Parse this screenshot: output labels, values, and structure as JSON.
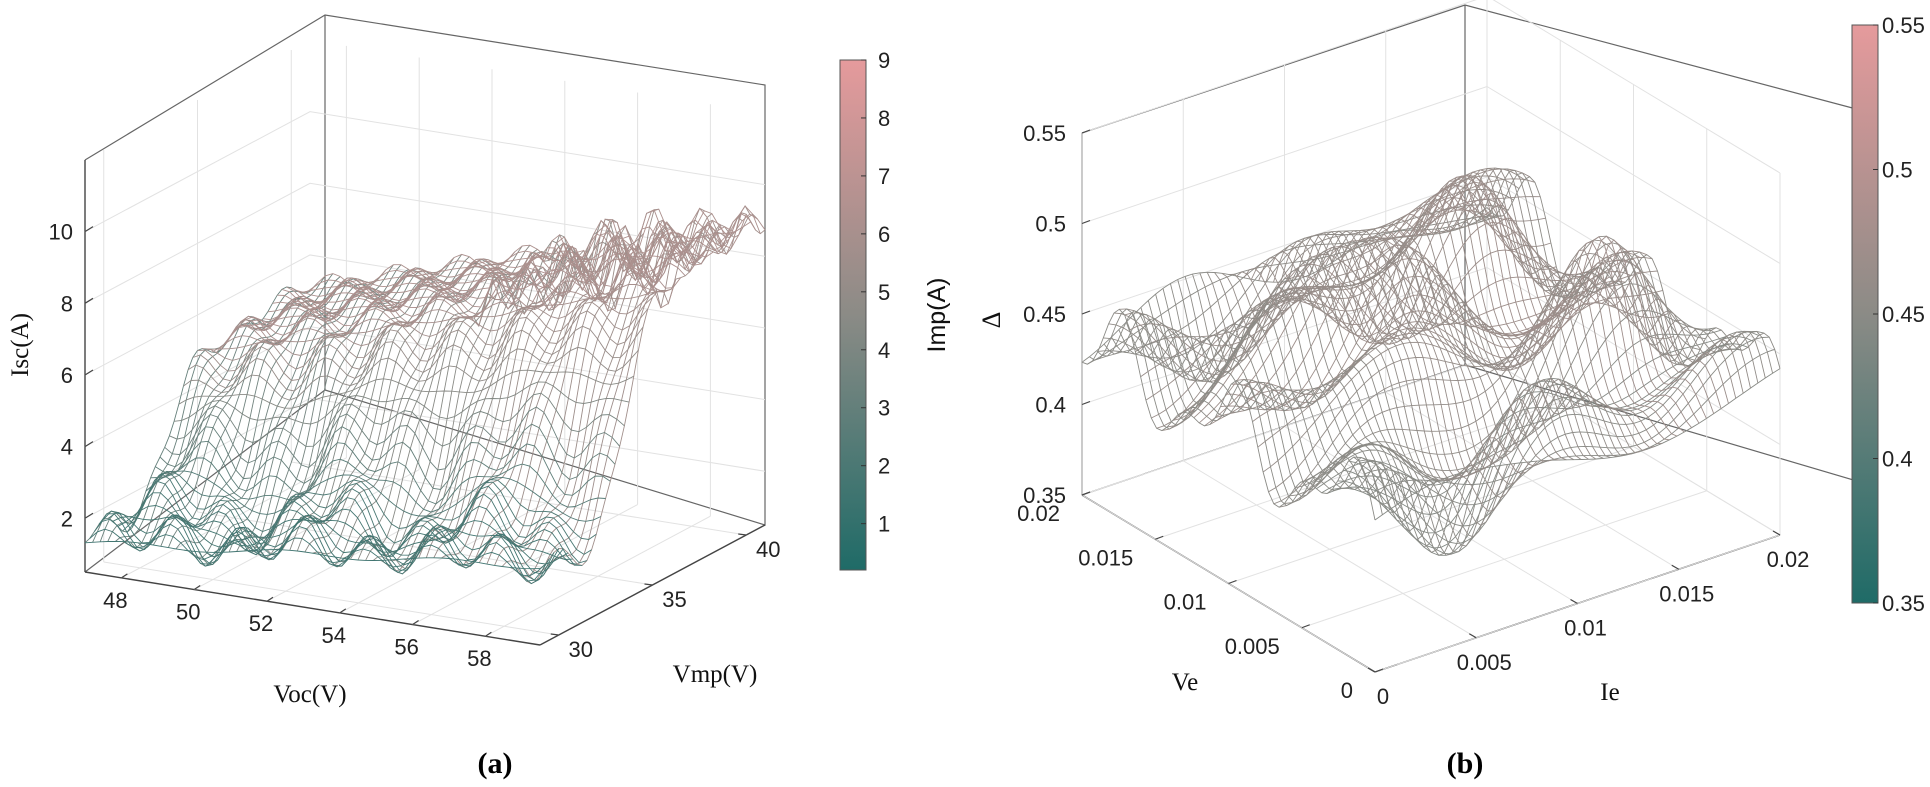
{
  "chart_data": [
    {
      "type": "surface",
      "panel_label": "(a)",
      "xlabel": "Voc(V)",
      "ylabel": "Vmp(V)",
      "zlabel": "Isc(A)",
      "colorbar_label": "Imp(A)",
      "x_ticks": [
        "48",
        "50",
        "52",
        "54",
        "56",
        "58"
      ],
      "x_range": [
        47,
        59.5
      ],
      "y_ticks": [
        "30",
        "35",
        "40"
      ],
      "y_range": [
        29,
        41
      ],
      "z_ticks": [
        "2",
        "4",
        "6",
        "8",
        "10"
      ],
      "z_range": [
        0.5,
        12
      ],
      "colorbar_ticks": [
        "1",
        "2",
        "3",
        "4",
        "5",
        "6",
        "7",
        "8",
        "9"
      ],
      "colorbar_range": [
        0.2,
        9
      ],
      "color_low": "#1f6b67",
      "color_mid": "#8b8b86",
      "color_high": "#e59a9c"
    },
    {
      "type": "surface",
      "panel_label": "(b)",
      "xlabel": "Ve",
      "ylabel": "Ie",
      "zlabel": "Δ",
      "x_ticks": [
        "0",
        "0.005",
        "0.01",
        "0.015",
        "0.02"
      ],
      "x_range": [
        0,
        0.02
      ],
      "y_ticks": [
        "0",
        "0.005",
        "0.01",
        "0.015",
        "0.02"
      ],
      "y_range": [
        0,
        0.02
      ],
      "z_ticks": [
        "0.35",
        "0.4",
        "0.45",
        "0.5",
        "0.55"
      ],
      "z_range": [
        0.35,
        0.55
      ],
      "colorbar_ticks": [
        "0.35",
        "0.4",
        "0.45",
        "0.5",
        "0.55"
      ],
      "colorbar_range": [
        0.35,
        0.55
      ],
      "color_low": "#1f6b67",
      "color_mid": "#8b8b86",
      "color_high": "#e59a9c"
    }
  ]
}
